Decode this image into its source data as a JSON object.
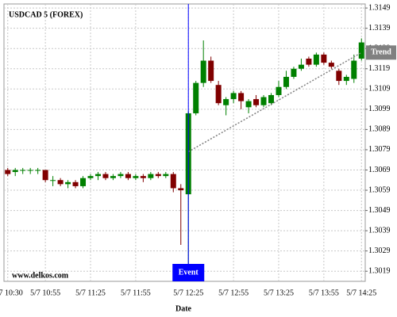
{
  "chart_data": {
    "type": "candlestick",
    "title": "USDCAD 5 (FOREX)",
    "watermark": "www.delkos.com",
    "x_label": "Date",
    "categories": [
      "5/7 10:30",
      null,
      null,
      null,
      null,
      "5/7 10:55",
      null,
      null,
      null,
      null,
      null,
      "5/7 11:25",
      null,
      null,
      null,
      null,
      null,
      "5/7 11:55",
      null,
      null,
      null,
      null,
      null,
      null,
      "5/7 12:25",
      null,
      null,
      null,
      null,
      null,
      "5/7 12:55",
      null,
      null,
      null,
      null,
      null,
      "5/7 13:25",
      null,
      null,
      null,
      null,
      null,
      "5/7 13:55",
      null,
      null,
      null,
      null,
      "5/7 14:25"
    ],
    "open": [
      1.3069,
      1.3068,
      1.3069,
      1.3069,
      1.3069,
      1.3069,
      1.3064,
      1.3064,
      1.3062,
      1.3063,
      1.3061,
      1.3065,
      1.3066,
      1.3067,
      1.3065,
      1.3066,
      1.3067,
      1.3065,
      1.3066,
      1.3065,
      1.3067,
      1.3066,
      1.3067,
      1.306,
      1.3057,
      1.3097,
      1.3112,
      1.3123,
      1.3111,
      1.3101,
      1.3104,
      1.3107,
      1.31,
      1.3104,
      1.3101,
      1.3102,
      1.3106,
      1.311,
      1.3115,
      1.3119,
      1.3124,
      1.3121,
      1.3126,
      1.3122,
      1.3118,
      1.3113,
      1.3114,
      1.3124
    ],
    "high": [
      1.307,
      1.307,
      1.307,
      1.307,
      1.307,
      1.3069,
      1.3066,
      1.3065,
      1.3064,
      1.3064,
      1.3066,
      1.3067,
      1.3068,
      1.3068,
      1.3067,
      1.3068,
      1.3068,
      1.3067,
      1.3067,
      1.3068,
      1.3068,
      1.3068,
      1.3068,
      1.3062,
      1.3098,
      1.3113,
      1.3133,
      1.3125,
      1.3113,
      1.3105,
      1.3108,
      1.3108,
      1.3104,
      1.3106,
      1.3106,
      1.3107,
      1.3113,
      1.3118,
      1.312,
      1.3124,
      1.3125,
      1.3127,
      1.3127,
      1.3123,
      1.3119,
      1.3116,
      1.3126,
      1.3134
    ],
    "low": [
      1.3066,
      1.3066,
      1.3067,
      1.3067,
      1.3067,
      1.3063,
      1.3061,
      1.3061,
      1.306,
      1.306,
      1.306,
      1.3064,
      1.3064,
      1.3064,
      1.3064,
      1.3065,
      1.3064,
      1.3064,
      1.3063,
      1.3064,
      1.3065,
      1.3065,
      1.3058,
      1.3032,
      1.3019,
      1.3096,
      1.311,
      1.3112,
      1.3101,
      1.3096,
      1.3102,
      1.3099,
      1.3097,
      1.31,
      1.31,
      1.3101,
      1.3105,
      1.3109,
      1.3114,
      1.3118,
      1.312,
      1.312,
      1.3121,
      1.3119,
      1.3111,
      1.3111,
      1.3112,
      1.3123
    ],
    "close": [
      1.3067,
      1.3069,
      1.3069,
      1.3069,
      1.3069,
      1.3064,
      1.3064,
      1.3062,
      1.3063,
      1.3061,
      1.3065,
      1.3066,
      1.3067,
      1.3065,
      1.3066,
      1.3067,
      1.3065,
      1.3066,
      1.3065,
      1.3067,
      1.3066,
      1.3067,
      1.306,
      1.3059,
      1.3097,
      1.3112,
      1.3123,
      1.3113,
      1.3102,
      1.3104,
      1.3107,
      1.3103,
      1.3103,
      1.3101,
      1.3105,
      1.3106,
      1.311,
      1.3115,
      1.3119,
      1.3121,
      1.3121,
      1.3126,
      1.3122,
      1.312,
      1.3113,
      1.3115,
      1.3123,
      1.3132
    ],
    "up_color": "#008000",
    "down_color": "#800000",
    "ylim": [
      1.3014,
      1.3151
    ],
    "yticks": [
      1.3019,
      1.3029,
      1.3039,
      1.3049,
      1.3059,
      1.3069,
      1.3079,
      1.3089,
      1.3099,
      1.3109,
      1.3119,
      1.3129,
      1.3139,
      1.3149
    ],
    "grid": true,
    "event": {
      "text": "Event",
      "index": 24,
      "color": "#0000ff"
    },
    "trend": {
      "text": "Trend",
      "start_index": 24,
      "start_value": 1.3078,
      "end_index": 47,
      "end_value": 1.3127,
      "color": "#808080"
    }
  }
}
